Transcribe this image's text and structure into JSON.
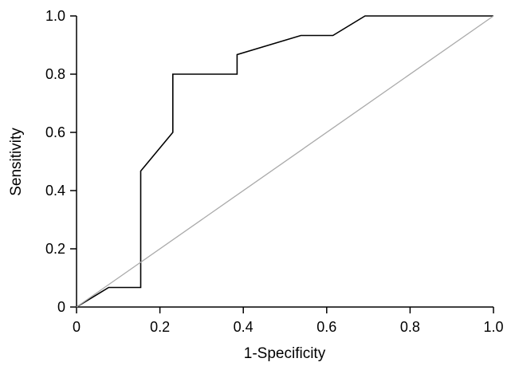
{
  "chart_data": {
    "type": "line",
    "title": "",
    "xlabel": "1-Specificity",
    "ylabel": "Sensitivity",
    "xlim": [
      0,
      1
    ],
    "ylim": [
      0,
      1
    ],
    "x_ticks": [
      0,
      0.2,
      0.4,
      0.6,
      0.8,
      1.0
    ],
    "x_tick_labels": [
      "0",
      "0.2",
      "0.4",
      "0.6",
      "0.8",
      "1.0"
    ],
    "y_ticks": [
      0,
      0.2,
      0.4,
      0.6,
      0.8,
      1.0
    ],
    "y_tick_labels": [
      "0",
      "0.2",
      "0.4",
      "0.6",
      "0.8",
      "1.0"
    ],
    "grid": false,
    "legend": "none",
    "series": [
      {
        "color": "#000000",
        "x": [
          0,
          0.077,
          0.154,
          0.154,
          0.231,
          0.231,
          0.385,
          0.385,
          0.538,
          0.615,
          0.692,
          1.0
        ],
        "y": [
          0,
          0.067,
          0.067,
          0.467,
          0.6,
          0.8,
          0.8,
          0.867,
          0.933,
          0.933,
          1.0,
          1.0
        ]
      },
      {
        "color": "#aaaaaa",
        "x": [
          0,
          1
        ],
        "y": [
          0,
          1
        ]
      }
    ]
  }
}
